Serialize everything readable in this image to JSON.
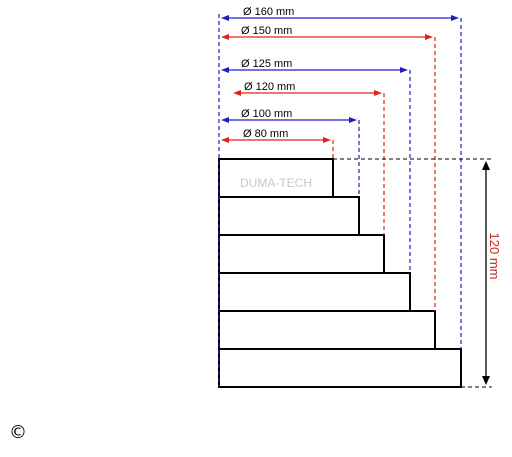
{
  "watermark": "DUMA-TECH",
  "height_label": "120 mm",
  "copyright_symbol": "©",
  "colors": {
    "blue": "#1f1fbf",
    "red": "#e0201f",
    "outline": "#000000",
    "watermark": "#c8c8c8",
    "height_text": "#cc2222"
  },
  "steps": [
    {
      "label": "Ø 80 mm",
      "color": "red"
    },
    {
      "label": "Ø 100 mm",
      "color": "blue"
    },
    {
      "label": "Ø 120 mm",
      "color": "red"
    },
    {
      "label": "Ø 125 mm",
      "color": "blue"
    },
    {
      "label": "Ø 150 mm",
      "color": "red"
    },
    {
      "label": "Ø 160 mm",
      "color": "blue"
    }
  ]
}
